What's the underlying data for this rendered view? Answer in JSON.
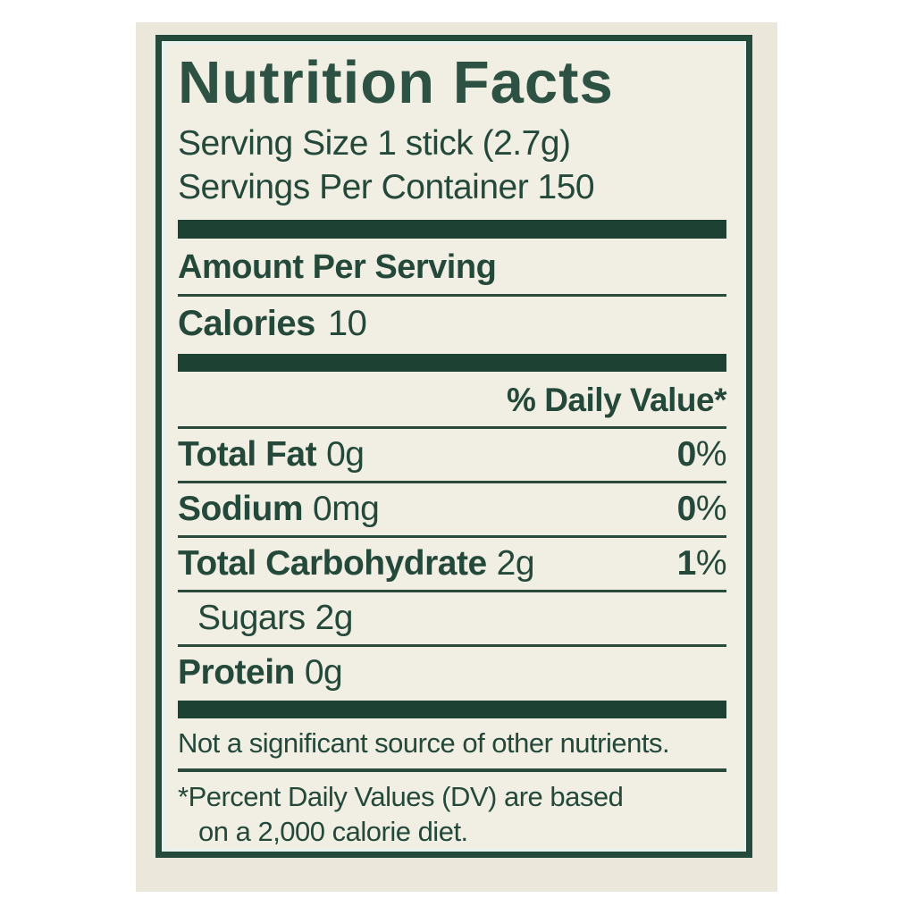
{
  "colors": {
    "canvas_bg": "#ffffff",
    "photo_bg": "#ebe7da",
    "label_bg": "#f1eee3",
    "border_green": "#234a3b",
    "bar_green": "#1d4233",
    "text_green": "#24493a"
  },
  "label": {
    "title": "Nutrition Facts",
    "serving": {
      "size": "Serving Size 1 stick (2.7g)",
      "per_container": "Servings Per Container 150"
    },
    "amount_per_serving": "Amount Per Serving",
    "calories": {
      "label": "Calories",
      "value": "10"
    },
    "daily_value_header": "% Daily Value*",
    "rows": [
      {
        "name": "Total Fat",
        "amount": "0g",
        "dv_number": "0",
        "dv_percent_sign": "%"
      },
      {
        "name": "Sodium",
        "amount": "0mg",
        "dv_number": "0",
        "dv_percent_sign": "%"
      },
      {
        "name": "Total Carbohydrate",
        "amount": "2g",
        "dv_number": "1",
        "dv_percent_sign": "%"
      },
      {
        "name": "Sugars",
        "amount": "2g"
      },
      {
        "name": "Protein",
        "amount": "0g"
      }
    ],
    "note": "Not a significant source of other nutrients.",
    "footnote": {
      "line1": "*Percent Daily Values (DV) are based",
      "line2": "on a 2,000 calorie diet."
    }
  }
}
